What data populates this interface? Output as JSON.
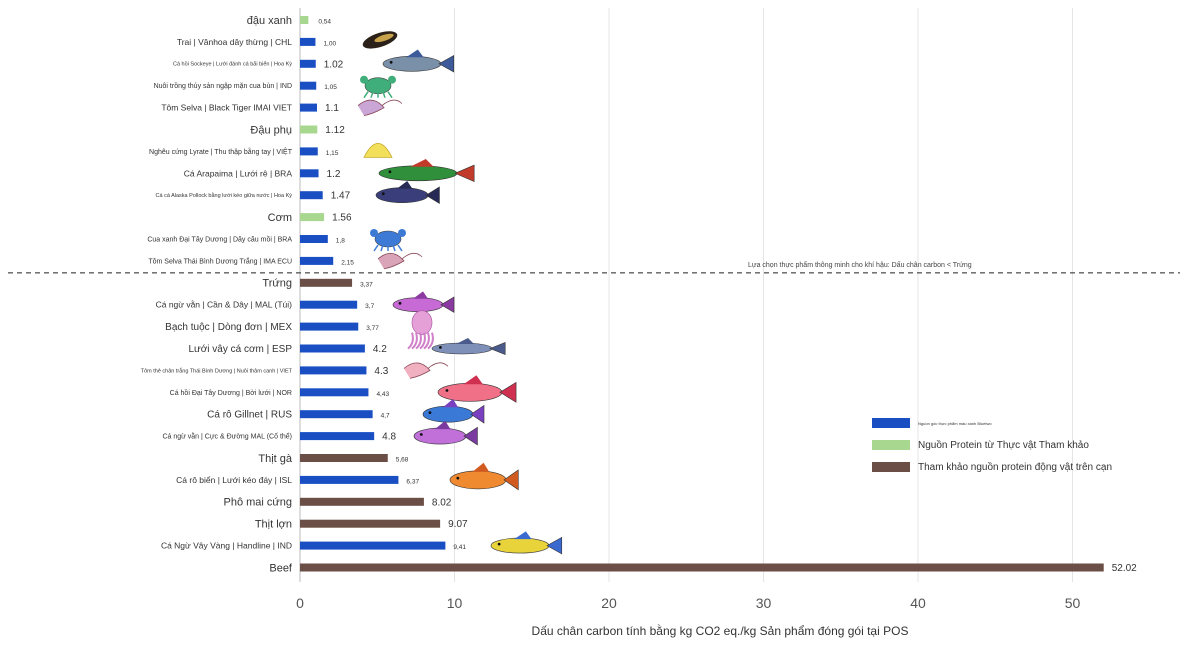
{
  "chart_data": {
    "type": "bar",
    "orientation": "horizontal",
    "title": "",
    "xlabel": "Dấu chân carbon tính bằng kg CO2 eq./kg Sản phẩm đóng gói tại POS",
    "ylabel": "",
    "xlim": [
      0,
      55
    ],
    "xticks": [
      0,
      10,
      20,
      30,
      40,
      50
    ],
    "grid": true,
    "legend_position": "right",
    "colors": {
      "seafood": "#1a4fc4",
      "plant": "#a8d88f",
      "land": "#6b4e45"
    },
    "series": [
      {
        "name": "Nguồn gốc thực phẩm màu xanh Bluetwo",
        "key": "seafood"
      },
      {
        "name": "Nguồn Protein từ Thực vật Tham khảo",
        "key": "plant"
      },
      {
        "name": "Tham khảo nguồn protein động vật trên cạn",
        "key": "land"
      }
    ],
    "annotation": "Lựa chọn thực phẩm thông minh cho khí hậu: Dấu chân carbon < Trứng",
    "rows": [
      {
        "label": "đậu xanh",
        "value": 0.54,
        "value_label": "0,54",
        "series": "plant",
        "icon": ""
      },
      {
        "label": "Trai | Vânhoa dây thừng | CHL",
        "value": 1.0,
        "value_label": "1,00",
        "series": "seafood",
        "icon": "mussel"
      },
      {
        "label": "Cá hồi Sockeye | Lưới đánh cá bãi biển | Hoa Kỳ",
        "value": 1.02,
        "value_label": "1.02",
        "series": "seafood",
        "icon": "salmon"
      },
      {
        "label": "Nuôi trồng thủy sản ngập mặn cua bùn | IND",
        "value": 1.05,
        "value_label": "1,05",
        "series": "seafood",
        "icon": "crab"
      },
      {
        "label": "Tôm Selva | Black Tiger IMAI VIET",
        "value": 1.1,
        "value_label": "1.1",
        "series": "seafood",
        "icon": "shrimp"
      },
      {
        "label": "Đậu phụ",
        "value": 1.12,
        "value_label": "1.12",
        "series": "plant",
        "icon": ""
      },
      {
        "label": "Nghêu cứng Lyrate | Thu thập bằng tay | VIỆT",
        "value": 1.15,
        "value_label": "1,15",
        "series": "seafood",
        "icon": "clam"
      },
      {
        "label": "Cá Arapaima | Lưới rê | BRA",
        "value": 1.2,
        "value_label": "1.2",
        "series": "seafood",
        "icon": "arapaima"
      },
      {
        "label": "Cá cá Alaska Pollock bằng lưới kéo giữa nước | Hoa Kỳ",
        "value": 1.47,
        "value_label": "1.47",
        "series": "seafood",
        "icon": "pollock"
      },
      {
        "label": "Cơm",
        "value": 1.56,
        "value_label": "1.56",
        "series": "plant",
        "icon": ""
      },
      {
        "label": "Cua xanh Đại Tây Dương | Dây câu mồi | BRA",
        "value": 1.8,
        "value_label": "1,8",
        "series": "seafood",
        "icon": "bluecrab"
      },
      {
        "label": "Tôm Selva Thái Bình Dương Trắng | IMA ECU",
        "value": 2.15,
        "value_label": "2,15",
        "series": "seafood",
        "icon": "whiteshrimp"
      },
      {
        "label": "Trứng",
        "value": 3.37,
        "value_label": "3,37",
        "series": "land",
        "icon": ""
      },
      {
        "label": "Cá ngừ vằn | Cần & Dây | MAL (Túi)",
        "value": 3.7,
        "value_label": "3,7",
        "series": "seafood",
        "icon": "skipjack"
      },
      {
        "label": "Bạch tuộc | Dòng đơn | MEX",
        "value": 3.77,
        "value_label": "3,77",
        "series": "seafood",
        "icon": "octopus"
      },
      {
        "label": "Lưới vây cá cơm | ESP",
        "value": 4.2,
        "value_label": "4.2",
        "series": "seafood",
        "icon": "anchovy"
      },
      {
        "label": "Tôm thẻ chân trắng Thái Bình Dương | Nuôi thâm canh | VIET",
        "value": 4.3,
        "value_label": "4.3",
        "series": "seafood",
        "icon": "vannamei"
      },
      {
        "label": "Cá hồi Đại Tây Dương | Bởi lưới | NOR",
        "value": 4.43,
        "value_label": "4,43",
        "series": "seafood",
        "icon": "atlsalmon"
      },
      {
        "label": "Cá rô Gillnet | RUS",
        "value": 4.7,
        "value_label": "4,7",
        "series": "seafood",
        "icon": "perch"
      },
      {
        "label": "Cá ngừ vằn | Cực & Đường MAL (Cố thể)",
        "value": 4.8,
        "value_label": "4.8",
        "series": "seafood",
        "icon": "skipjack2"
      },
      {
        "label": "Thịt gà",
        "value": 5.68,
        "value_label": "5,68",
        "series": "land",
        "icon": ""
      },
      {
        "label": "Cá rô biển | Lưới kéo đáy | ISL",
        "value": 6.37,
        "value_label": "6,37",
        "series": "seafood",
        "icon": "redfish"
      },
      {
        "label": "Phô mai cứng",
        "value": 8.02,
        "value_label": "8.02",
        "series": "land",
        "icon": ""
      },
      {
        "label": "Thịt lợn",
        "value": 9.07,
        "value_label": "9.07",
        "series": "land",
        "icon": ""
      },
      {
        "label": "Cá Ngừ Vây Vàng | Handline | IND",
        "value": 9.41,
        "value_label": "9,41",
        "series": "seafood",
        "icon": "yellowfin"
      },
      {
        "label": "Beef",
        "value": 52.02,
        "value_label": "52.02",
        "series": "land",
        "icon": ""
      }
    ]
  }
}
